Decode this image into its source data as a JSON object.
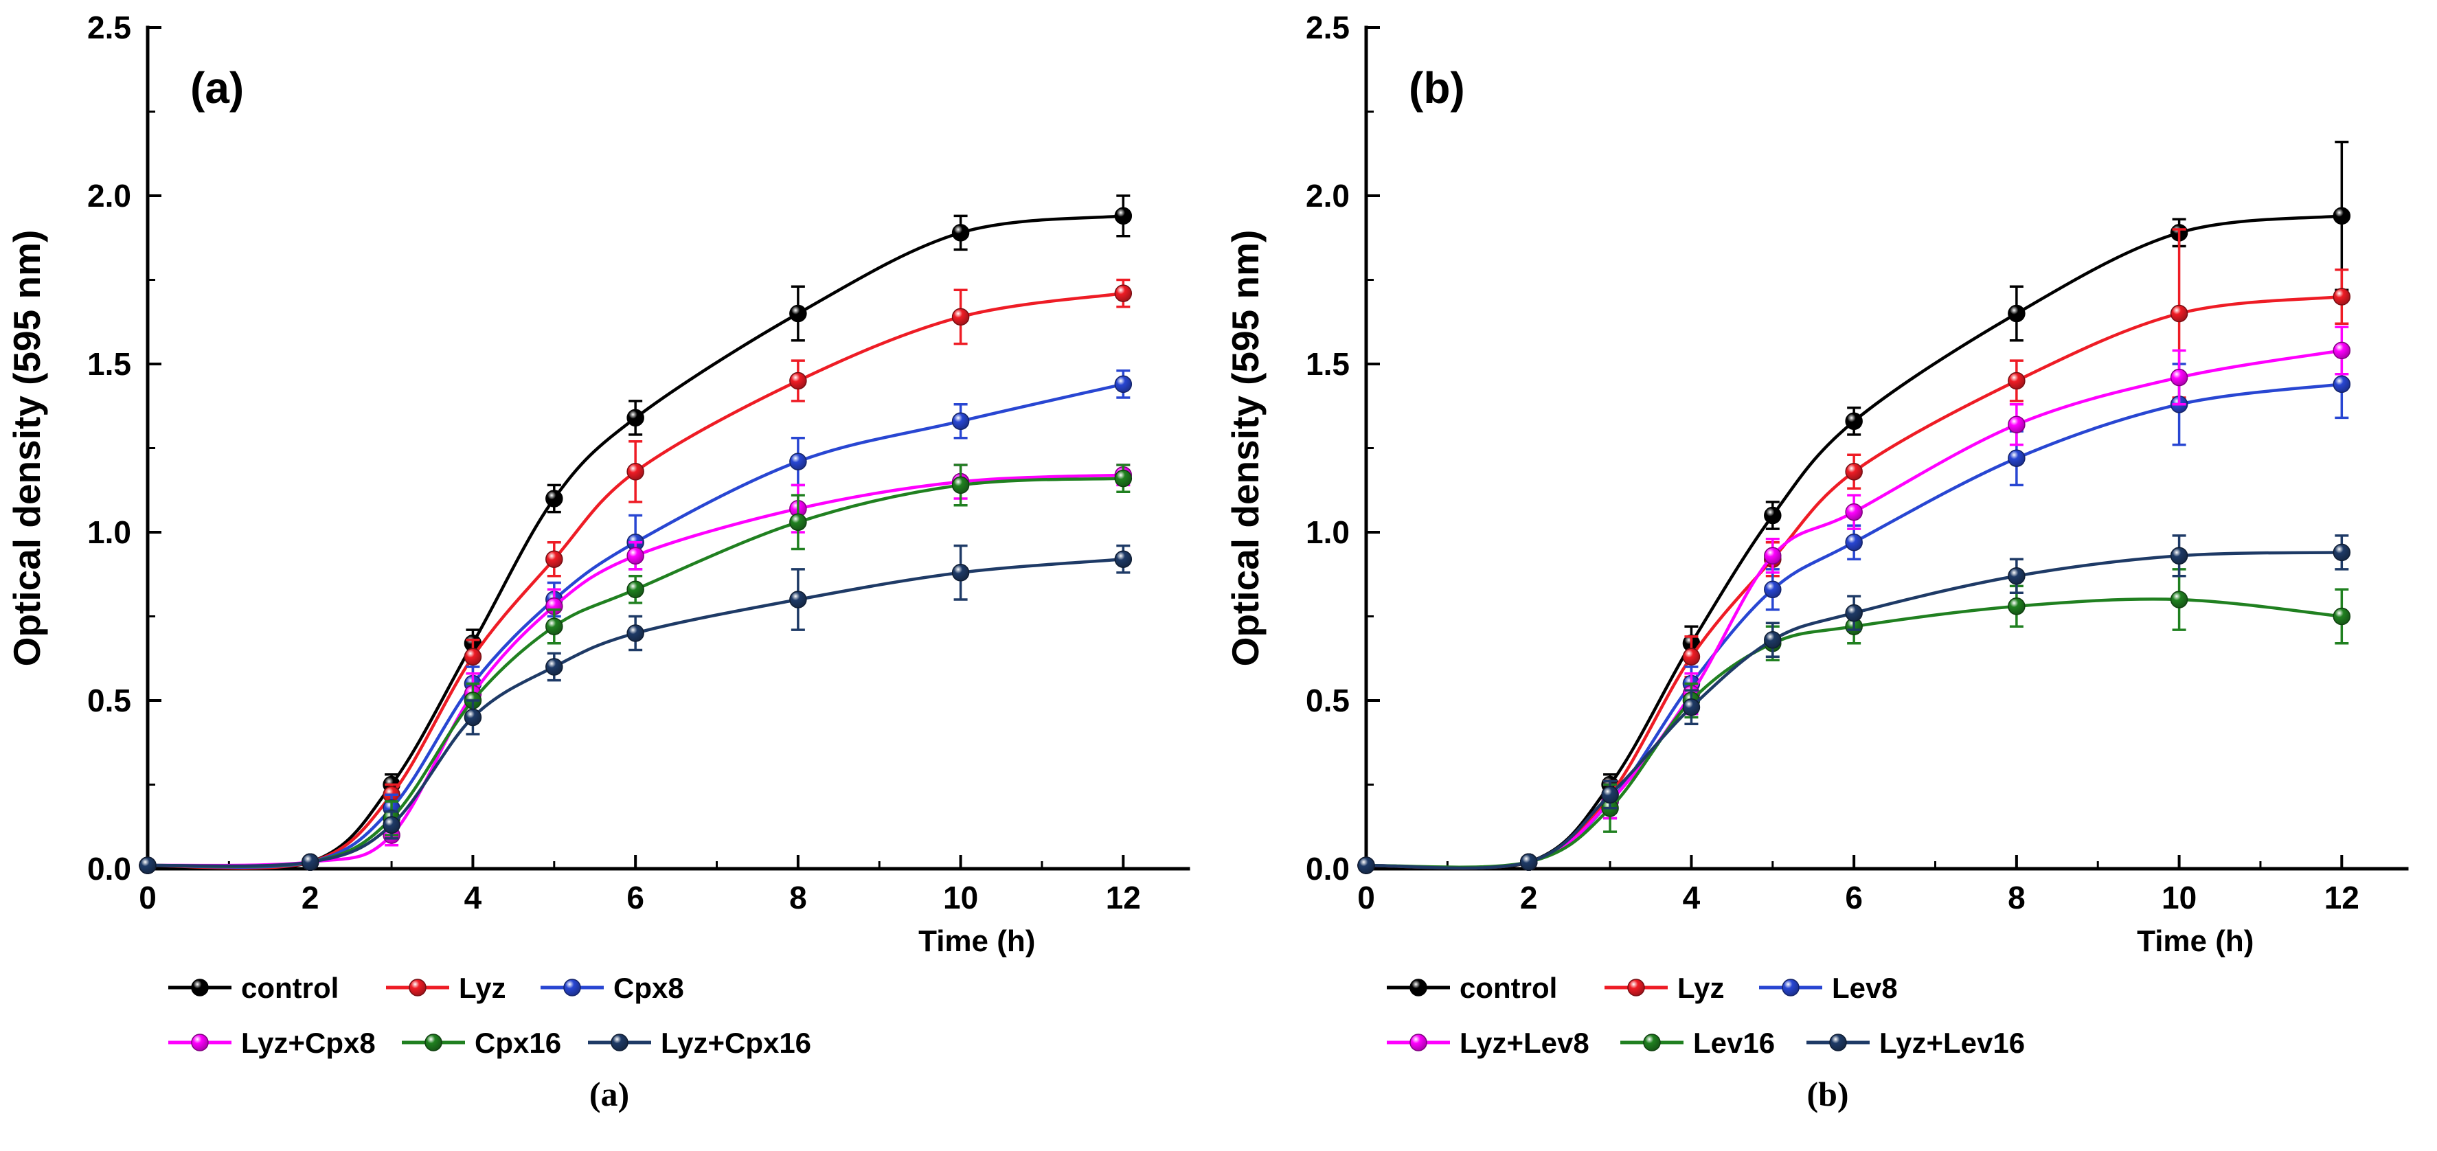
{
  "figure": {
    "background": "#ffffff",
    "axis_color": "#000000",
    "bottom_captions": [
      "(a)",
      "(b)"
    ]
  },
  "chart_data": [
    {
      "type": "line",
      "panel_label": "(a)",
      "xlabel": "Time (h)",
      "ylabel": "Optical density (595 nm)",
      "xlim": [
        0,
        12.8
      ],
      "ylim": [
        0,
        2.5
      ],
      "xticks": [
        0,
        2,
        4,
        6,
        8,
        10,
        12
      ],
      "yticks": [
        0,
        0.5,
        1,
        1.5,
        2,
        2.5
      ],
      "x": [
        0,
        2,
        3,
        4,
        5,
        6,
        8,
        10,
        12
      ],
      "grid": false,
      "legend_position": "bottom",
      "series": [
        {
          "name": "control",
          "color": "#000000",
          "values": [
            0.01,
            0.02,
            0.25,
            0.67,
            1.1,
            1.34,
            1.65,
            1.89,
            1.94
          ],
          "errors": [
            0,
            0,
            0.03,
            0.04,
            0.04,
            0.05,
            0.08,
            0.05,
            0.06
          ]
        },
        {
          "name": "Lyz",
          "color": "#ee1c25",
          "values": [
            0.01,
            0.02,
            0.22,
            0.63,
            0.92,
            1.18,
            1.45,
            1.64,
            1.71
          ],
          "errors": [
            0,
            0,
            0.03,
            0.05,
            0.05,
            0.09,
            0.06,
            0.08,
            0.04
          ]
        },
        {
          "name": "Cpx8",
          "color": "#2846d2",
          "values": [
            0.01,
            0.02,
            0.18,
            0.55,
            0.8,
            0.97,
            1.21,
            1.33,
            1.44
          ],
          "errors": [
            0,
            0,
            0.04,
            0.05,
            0.05,
            0.08,
            0.07,
            0.05,
            0.04
          ]
        },
        {
          "name": "Lyz+Cpx8",
          "color": "#ff00ff",
          "values": [
            0.01,
            0.02,
            0.1,
            0.52,
            0.78,
            0.93,
            1.07,
            1.15,
            1.17
          ],
          "errors": [
            0,
            0,
            0.03,
            0.06,
            0.05,
            0.04,
            0.07,
            0.05,
            0.03
          ]
        },
        {
          "name": "Cpx16",
          "color": "#208020",
          "values": [
            0.01,
            0.02,
            0.15,
            0.5,
            0.72,
            0.83,
            1.03,
            1.14,
            1.16
          ],
          "errors": [
            0,
            0,
            0.05,
            0.05,
            0.05,
            0.04,
            0.08,
            0.06,
            0.04
          ]
        },
        {
          "name": "Lyz+Cpx16",
          "color": "#1e3a66",
          "values": [
            0.01,
            0.02,
            0.13,
            0.45,
            0.6,
            0.7,
            0.8,
            0.88,
            0.92
          ],
          "errors": [
            0,
            0,
            0.04,
            0.05,
            0.04,
            0.05,
            0.09,
            0.08,
            0.04
          ]
        }
      ]
    },
    {
      "type": "line",
      "panel_label": "(b)",
      "xlabel": "Time (h)",
      "ylabel": "Optical density (595 nm)",
      "xlim": [
        0,
        12.8
      ],
      "ylim": [
        0,
        2.5
      ],
      "xticks": [
        0,
        2,
        4,
        6,
        8,
        10,
        12
      ],
      "yticks": [
        0,
        0.5,
        1,
        1.5,
        2,
        2.5
      ],
      "x": [
        0,
        2,
        3,
        4,
        5,
        6,
        8,
        10,
        12
      ],
      "grid": false,
      "legend_position": "bottom",
      "series": [
        {
          "name": "control",
          "color": "#000000",
          "values": [
            0.01,
            0.02,
            0.25,
            0.67,
            1.05,
            1.33,
            1.65,
            1.89,
            1.94
          ],
          "errors": [
            0,
            0,
            0.03,
            0.05,
            0.04,
            0.04,
            0.08,
            0.04,
            0.22
          ]
        },
        {
          "name": "Lyz",
          "color": "#ee1c25",
          "values": [
            0.01,
            0.02,
            0.22,
            0.63,
            0.92,
            1.18,
            1.45,
            1.65,
            1.7
          ],
          "errors": [
            0,
            0,
            0.04,
            0.06,
            0.05,
            0.05,
            0.06,
            0.25,
            0.08
          ]
        },
        {
          "name": "Lev8",
          "color": "#2846d2",
          "values": [
            0.01,
            0.02,
            0.2,
            0.55,
            0.83,
            0.97,
            1.22,
            1.38,
            1.44
          ],
          "errors": [
            0,
            0,
            0.05,
            0.05,
            0.06,
            0.05,
            0.08,
            0.12,
            0.1
          ]
        },
        {
          "name": "Lyz+Lev8",
          "color": "#ff00ff",
          "values": [
            0.01,
            0.02,
            0.2,
            0.52,
            0.93,
            1.06,
            1.32,
            1.46,
            1.54
          ],
          "errors": [
            0,
            0,
            0.05,
            0.06,
            0.05,
            0.05,
            0.06,
            0.08,
            0.07
          ]
        },
        {
          "name": "Lev16",
          "color": "#208020",
          "values": [
            0.01,
            0.02,
            0.18,
            0.5,
            0.67,
            0.72,
            0.78,
            0.8,
            0.75
          ],
          "errors": [
            0,
            0,
            0.07,
            0.05,
            0.05,
            0.05,
            0.06,
            0.09,
            0.08
          ]
        },
        {
          "name": "Lyz+Lev16",
          "color": "#1e3a66",
          "values": [
            0.01,
            0.02,
            0.22,
            0.48,
            0.68,
            0.76,
            0.87,
            0.93,
            0.94
          ],
          "errors": [
            0,
            0,
            0.04,
            0.05,
            0.05,
            0.05,
            0.05,
            0.06,
            0.05
          ]
        }
      ]
    }
  ]
}
